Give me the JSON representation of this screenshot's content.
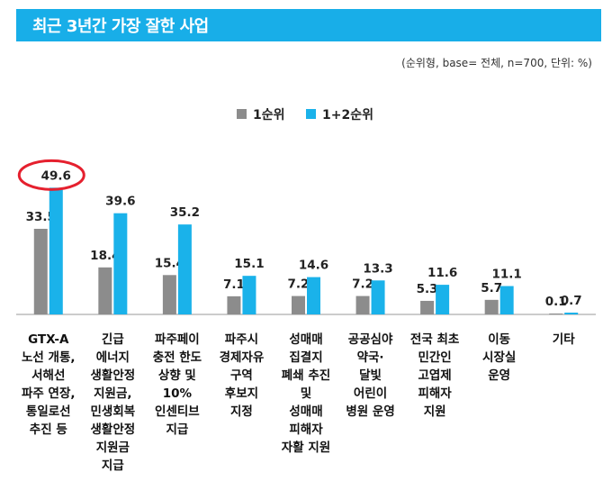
{
  "header": {
    "title": "최근 3년간 가장 잘한 사업",
    "note": "(순위형, base= 전체, n=700, 단위: %)"
  },
  "colors": {
    "series1": "#8c8c8c",
    "series2": "#1ab2ea",
    "highlight": "#e5202e",
    "title_bg": "#18aee8"
  },
  "chart_data": {
    "type": "bar",
    "title": "최근 3년간 가장 잘한 사업",
    "subtitle": "(순위형, base= 전체, n=700, 단위: %)",
    "ylim": [
      0,
      55
    ],
    "legend_position": "top-center",
    "grid": false,
    "categories": [
      [
        "GTX-A",
        "노선 개통,",
        "서해선",
        "파주 연장,",
        "통일로선",
        "추진 등"
      ],
      [
        "긴급",
        "에너지",
        "생활안정",
        "지원금,",
        "민생회복",
        "생활안정",
        "지원금",
        "지급"
      ],
      [
        "파주페이",
        "충전 한도",
        "상향 및",
        "10%",
        "인센티브",
        "지급"
      ],
      [
        "파주시",
        "경제자유",
        "구역",
        "후보지",
        "지정"
      ],
      [
        "성매매",
        "집결지",
        "폐쇄 추진",
        "및",
        "성매매",
        "피해자",
        "자활 지원"
      ],
      [
        "공공심야",
        "약국·",
        "달빛",
        "어린이",
        "병원 운영"
      ],
      [
        "전국 최초",
        "민간인",
        "고엽제",
        "피해자",
        "지원"
      ],
      [
        "이동",
        "시장실",
        "운영"
      ],
      [
        "기타"
      ]
    ],
    "series": [
      {
        "name": "1순위",
        "values": [
          33.5,
          18.4,
          15.4,
          7.1,
          7.2,
          7.2,
          5.3,
          5.7,
          0.1
        ]
      },
      {
        "name": "1+2순위",
        "values": [
          49.6,
          39.6,
          35.2,
          15.1,
          14.6,
          13.3,
          11.6,
          11.1,
          0.7
        ]
      }
    ],
    "value_labels": {
      "s1": [
        "33.5",
        "18.4",
        "15.4",
        "7.1",
        "7.2",
        "7.2",
        "5.3",
        "5.7",
        "0.1"
      ],
      "s2": [
        "49.6",
        "39.6",
        "35.2",
        "15.1",
        "14.6",
        "13.3",
        "11.6",
        "11.1",
        "0.7"
      ]
    },
    "highlighted": {
      "series": 1,
      "category": 0
    }
  }
}
